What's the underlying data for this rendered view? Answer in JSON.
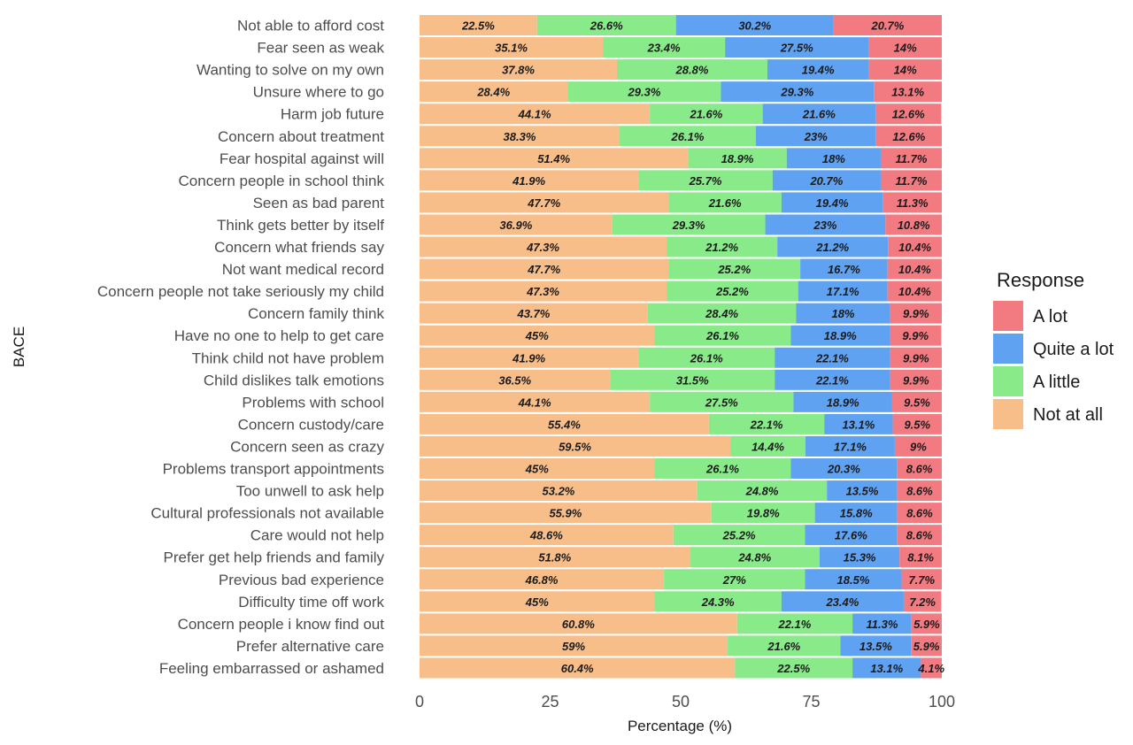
{
  "chart_data": {
    "type": "bar",
    "orientation": "horizontal",
    "stacked": true,
    "xlabel": "Percentage (%)",
    "ylabel": "BACE",
    "xlim": [
      0,
      100
    ],
    "xticks": [
      "0",
      "25",
      "50",
      "75",
      "100"
    ],
    "legend_title": "Response",
    "legend_placement": "right",
    "categories": [
      "Not able to afford cost",
      "Fear seen as weak",
      "Wanting to solve on my own",
      "Unsure where to go",
      "Harm job future",
      "Concern about treatment",
      "Fear hospital against will",
      "Concern people in school think",
      "Seen as bad parent",
      "Think gets better by itself",
      "Concern what friends say",
      "Not want medical record",
      "Concern people not take seriously my child",
      "Concern family think",
      "Have no one to help to get care",
      "Think child not have problem",
      "Child dislikes talk emotions",
      "Problems with school",
      "Concern custody/care",
      "Concern seen as crazy",
      "Problems transport appointments",
      "Too unwell to ask help",
      "Cultural professionals not available",
      "Care would not help",
      "Prefer get help friends and family",
      "Previous bad experience",
      "Difficulty time off work",
      "Concern people i know find out",
      "Prefer alternative care",
      "Feeling embarrassed or ashamed"
    ],
    "series": [
      {
        "name": "Not at all",
        "color": "#F8BE8A",
        "values": [
          22.5,
          35.1,
          37.8,
          28.4,
          44.1,
          38.3,
          51.4,
          41.9,
          47.7,
          36.9,
          47.3,
          47.7,
          47.3,
          43.7,
          45,
          41.9,
          36.5,
          44.1,
          55.4,
          59.5,
          45,
          53.2,
          55.9,
          48.6,
          51.8,
          46.8,
          45,
          60.8,
          59,
          60.4
        ]
      },
      {
        "name": "A little",
        "color": "#88EA88",
        "values": [
          26.6,
          23.4,
          28.8,
          29.3,
          21.6,
          26.1,
          18.9,
          25.7,
          21.6,
          29.3,
          21.2,
          25.2,
          25.2,
          28.4,
          26.1,
          26.1,
          31.5,
          27.5,
          22.1,
          14.4,
          26.1,
          24.8,
          19.8,
          25.2,
          24.8,
          27,
          24.3,
          22.1,
          21.6,
          22.5
        ]
      },
      {
        "name": "Quite a lot",
        "color": "#5FA2F2",
        "values": [
          30.2,
          27.5,
          19.4,
          29.3,
          21.6,
          23,
          18,
          20.7,
          19.4,
          23,
          21.2,
          16.7,
          17.1,
          18,
          18.9,
          22.1,
          22.1,
          18.9,
          13.1,
          17.1,
          20.3,
          13.5,
          15.8,
          17.6,
          15.3,
          18.5,
          23.4,
          11.3,
          13.5,
          13.1
        ]
      },
      {
        "name": "A lot",
        "color": "#F27B82",
        "values": [
          20.7,
          14,
          14,
          13.1,
          12.6,
          12.6,
          11.7,
          11.7,
          11.3,
          10.8,
          10.4,
          10.4,
          10.4,
          9.9,
          9.9,
          9.9,
          9.9,
          9.5,
          9.5,
          9,
          8.6,
          8.6,
          8.6,
          8.6,
          8.1,
          7.7,
          7.2,
          5.9,
          5.9,
          4.1
        ]
      }
    ],
    "legend_order": [
      "A lot",
      "Quite a lot",
      "A little",
      "Not at all"
    ]
  }
}
